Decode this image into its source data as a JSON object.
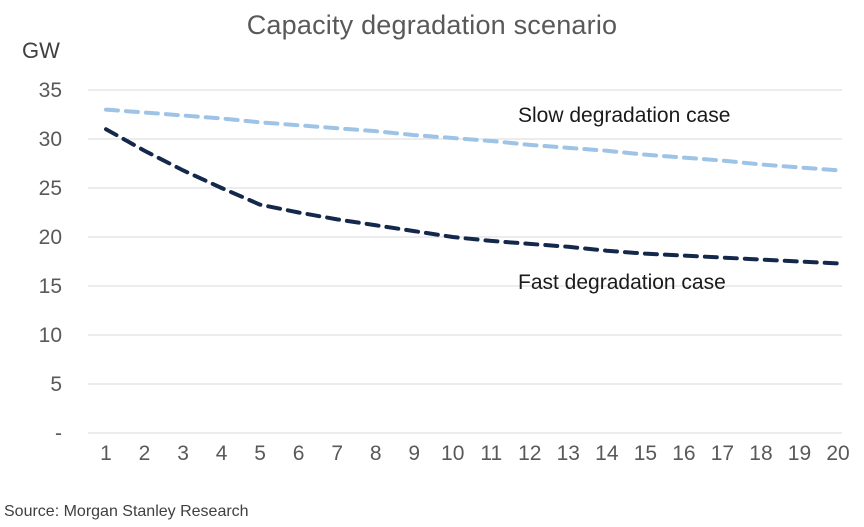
{
  "source": "Source: Morgan Stanley Research",
  "chart_data": {
    "type": "line",
    "title": "Capacity degradation scenario",
    "ylabel": "GW",
    "xlabel": "",
    "ylim": [
      0,
      35
    ],
    "ytick_step": 5,
    "zero_tick_label": "-",
    "grid": true,
    "line_style": "dashed",
    "legend_position": "inline-annotations",
    "x": [
      1,
      2,
      3,
      4,
      5,
      6,
      7,
      8,
      9,
      10,
      11,
      12,
      13,
      14,
      15,
      16,
      17,
      18,
      19,
      20
    ],
    "series": [
      {
        "name": "Slow degradation case",
        "color": "#9dc3e6",
        "values": [
          33.0,
          32.7,
          32.4,
          32.1,
          31.7,
          31.4,
          31.1,
          30.8,
          30.4,
          30.1,
          29.8,
          29.4,
          29.1,
          28.8,
          28.4,
          28.1,
          27.8,
          27.4,
          27.1,
          26.8
        ]
      },
      {
        "name": "Fast degradation case",
        "color": "#14284b",
        "values": [
          31.0,
          28.8,
          26.8,
          25.0,
          23.3,
          22.5,
          21.8,
          21.2,
          20.6,
          20.0,
          19.6,
          19.3,
          19.0,
          18.6,
          18.3,
          18.1,
          17.9,
          17.7,
          17.5,
          17.3
        ]
      }
    ],
    "axis_text_color": "#595959",
    "grid_color": "#d9d9d9"
  }
}
